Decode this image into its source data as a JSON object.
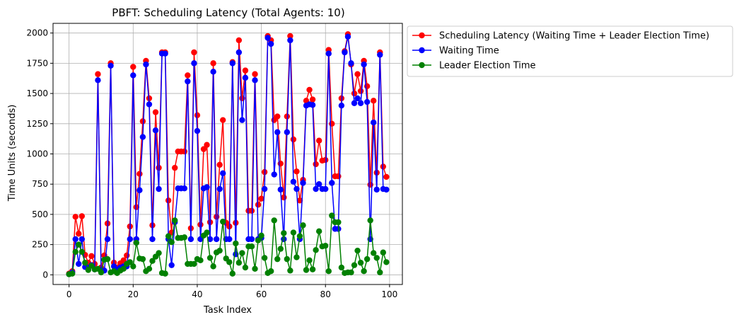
{
  "chart_data": {
    "type": "line",
    "title": "PBFT: Scheduling Latency (Total Agents: 10)",
    "xlabel": "Task Index",
    "ylabel": "Time Units (seconds)",
    "xlim": [
      -5,
      104
    ],
    "ylim": [
      -80,
      2080
    ],
    "x_ticks": [
      0,
      20,
      40,
      60,
      80,
      100
    ],
    "y_ticks": [
      0,
      250,
      500,
      750,
      1000,
      1250,
      1500,
      1750,
      2000
    ],
    "grid": true,
    "legend_position": "outside-upper-right",
    "x": [
      0,
      1,
      2,
      3,
      4,
      5,
      6,
      7,
      8,
      9,
      10,
      11,
      12,
      13,
      14,
      15,
      16,
      17,
      18,
      19,
      20,
      21,
      22,
      23,
      24,
      25,
      26,
      27,
      28,
      29,
      30,
      31,
      32,
      33,
      34,
      35,
      36,
      37,
      38,
      39,
      40,
      41,
      42,
      43,
      44,
      45,
      46,
      47,
      48,
      49,
      50,
      51,
      52,
      53,
      54,
      55,
      56,
      57,
      58,
      59,
      60,
      61,
      62,
      63,
      64,
      65,
      66,
      67,
      68,
      69,
      70,
      71,
      72,
      73,
      74,
      75,
      76,
      77,
      78,
      79,
      80,
      81,
      82,
      83,
      84,
      85,
      86,
      87,
      88,
      89,
      90,
      91,
      92,
      93,
      94,
      95,
      96,
      97,
      98,
      99
    ],
    "series": [
      {
        "name": "Scheduling Latency (Waiting Time + Leader Election Time)",
        "color": "#ff0000",
        "values": [
          10,
          30,
          480,
          340,
          485,
          165,
          100,
          155,
          90,
          1660,
          60,
          160,
          425,
          1750,
          100,
          60,
          95,
          120,
          160,
          400,
          1720,
          560,
          835,
          1270,
          1770,
          1460,
          410,
          1345,
          885,
          1840,
          1840,
          615,
          350,
          885,
          1020,
          1020,
          1020,
          1650,
          385,
          1840,
          1320,
          415,
          1040,
          1075,
          435,
          1750,
          480,
          910,
          1280,
          430,
          400,
          1760,
          430,
          1940,
          1460,
          1690,
          530,
          530,
          1660,
          580,
          630,
          850,
          1975,
          1940,
          1280,
          1310,
          920,
          640,
          1310,
          1975,
          1120,
          855,
          615,
          785,
          1440,
          1530,
          1450,
          915,
          1110,
          945,
          950,
          1860,
          1250,
          815,
          815,
          1460,
          1850,
          1990,
          1740,
          1500,
          1660,
          1520,
          1770,
          1560,
          745,
          1440,
          845,
          1840,
          895,
          810
        ]
      },
      {
        "name": "Waiting Time",
        "color": "#0000ff",
        "values": [
          5,
          20,
          295,
          90,
          295,
          65,
          60,
          80,
          45,
          1610,
          40,
          35,
          295,
          1730,
          70,
          45,
          60,
          70,
          70,
          295,
          1650,
          295,
          700,
          1140,
          1740,
          1410,
          295,
          1195,
          710,
          1830,
          1830,
          295,
          80,
          435,
          715,
          715,
          715,
          1600,
          295,
          1750,
          1190,
          295,
          715,
          725,
          295,
          1680,
          295,
          710,
          840,
          295,
          295,
          1750,
          170,
          1840,
          1280,
          1630,
          295,
          295,
          1610,
          295,
          305,
          710,
          1960,
          1910,
          830,
          1180,
          705,
          295,
          1180,
          1940,
          770,
          710,
          295,
          760,
          1400,
          1410,
          1405,
          710,
          750,
          710,
          710,
          1830,
          760,
          380,
          380,
          1400,
          1840,
          1970,
          1750,
          1420,
          1460,
          1420,
          1740,
          1430,
          295,
          1260,
          705,
          1820,
          710,
          705
        ]
      },
      {
        "name": "Leader Election Time",
        "color": "#008000",
        "values": [
          5,
          10,
          190,
          250,
          190,
          100,
          40,
          75,
          45,
          50,
          20,
          125,
          130,
          20,
          30,
          15,
          35,
          50,
          90,
          105,
          70,
          265,
          135,
          130,
          30,
          50,
          115,
          150,
          180,
          15,
          10,
          320,
          270,
          450,
          305,
          305,
          310,
          90,
          90,
          90,
          130,
          120,
          325,
          350,
          140,
          70,
          185,
          200,
          440,
          135,
          105,
          10,
          260,
          100,
          180,
          60,
          235,
          235,
          50,
          285,
          325,
          140,
          15,
          30,
          450,
          130,
          215,
          345,
          130,
          35,
          350,
          145,
          320,
          410,
          40,
          120,
          45,
          205,
          360,
          235,
          240,
          30,
          490,
          435,
          435,
          60,
          15,
          20,
          20,
          80,
          200,
          100,
          30,
          130,
          450,
          180,
          140,
          20,
          185,
          105
        ]
      }
    ]
  }
}
